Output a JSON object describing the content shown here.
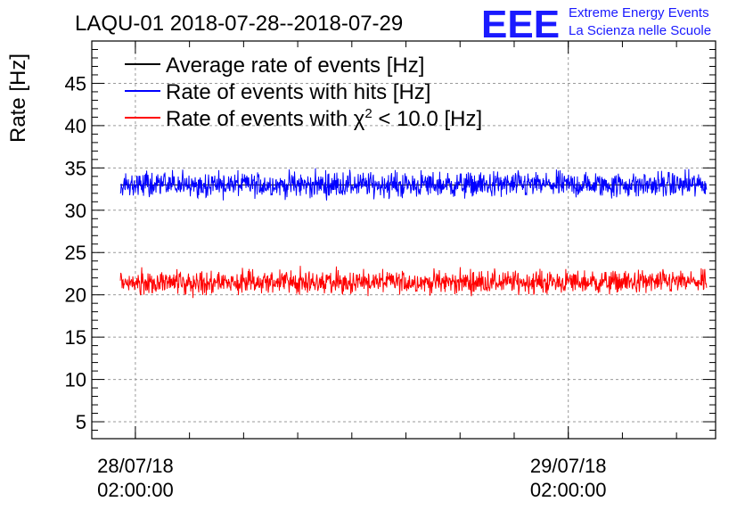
{
  "chart_data": {
    "type": "line",
    "title": "LAQU-01 2018-07-28--2018-07-29",
    "ylabel": "Rate [Hz]",
    "xlabel": "",
    "ylim": [
      3,
      50
    ],
    "yticks": [
      5,
      10,
      15,
      20,
      25,
      30,
      35,
      40,
      45
    ],
    "xlim": [
      "2018-07-27T23:35:00",
      "2018-07-29T10:10:00"
    ],
    "xticks": [
      {
        "value": "2018-07-28T02:00:00",
        "label_date": "28/07/18",
        "label_time": "02:00:00"
      },
      {
        "value": "2018-07-29T02:00:00",
        "label_date": "29/07/18",
        "label_time": "02:00:00"
      }
    ],
    "grid": true,
    "legend_position": "top-left",
    "legend": [
      {
        "label": "Average rate of events [Hz]",
        "color": "#000000"
      },
      {
        "label": "Rate of events with hits [Hz]",
        "color": "#0000ff"
      },
      {
        "label_prefix": "Rate of events with ",
        "label_symbol": "χ",
        "label_sup": "2",
        "label_suffix": " < 10.0 [Hz]",
        "color": "#ff0000"
      }
    ],
    "series": [
      {
        "name": "Average rate of events [Hz]",
        "color": "#000000",
        "x": [
          "2018-07-28T01:10:00",
          "2018-07-29T09:40:00"
        ],
        "values": [
          33.0,
          33.0
        ]
      },
      {
        "name": "Rate of events with hits [Hz]",
        "color": "#0000ff",
        "x": [
          "2018-07-28T01:10:00",
          "2018-07-29T09:40:00"
        ],
        "values": [
          33.0,
          33.0
        ],
        "noise_band": [
          31.0,
          35.3
        ]
      },
      {
        "name": "Rate of events with χ2 < 10.0 [Hz]",
        "color": "#ff0000",
        "x": [
          "2018-07-28T01:10:00",
          "2018-07-29T09:40:00"
        ],
        "values": [
          21.5,
          21.5
        ],
        "noise_band": [
          18.7,
          23.3
        ]
      }
    ]
  },
  "logo": {
    "mark": "EEE",
    "line1": "Extreme Energy Events",
    "line2": "La Scienza nelle Scuole"
  }
}
